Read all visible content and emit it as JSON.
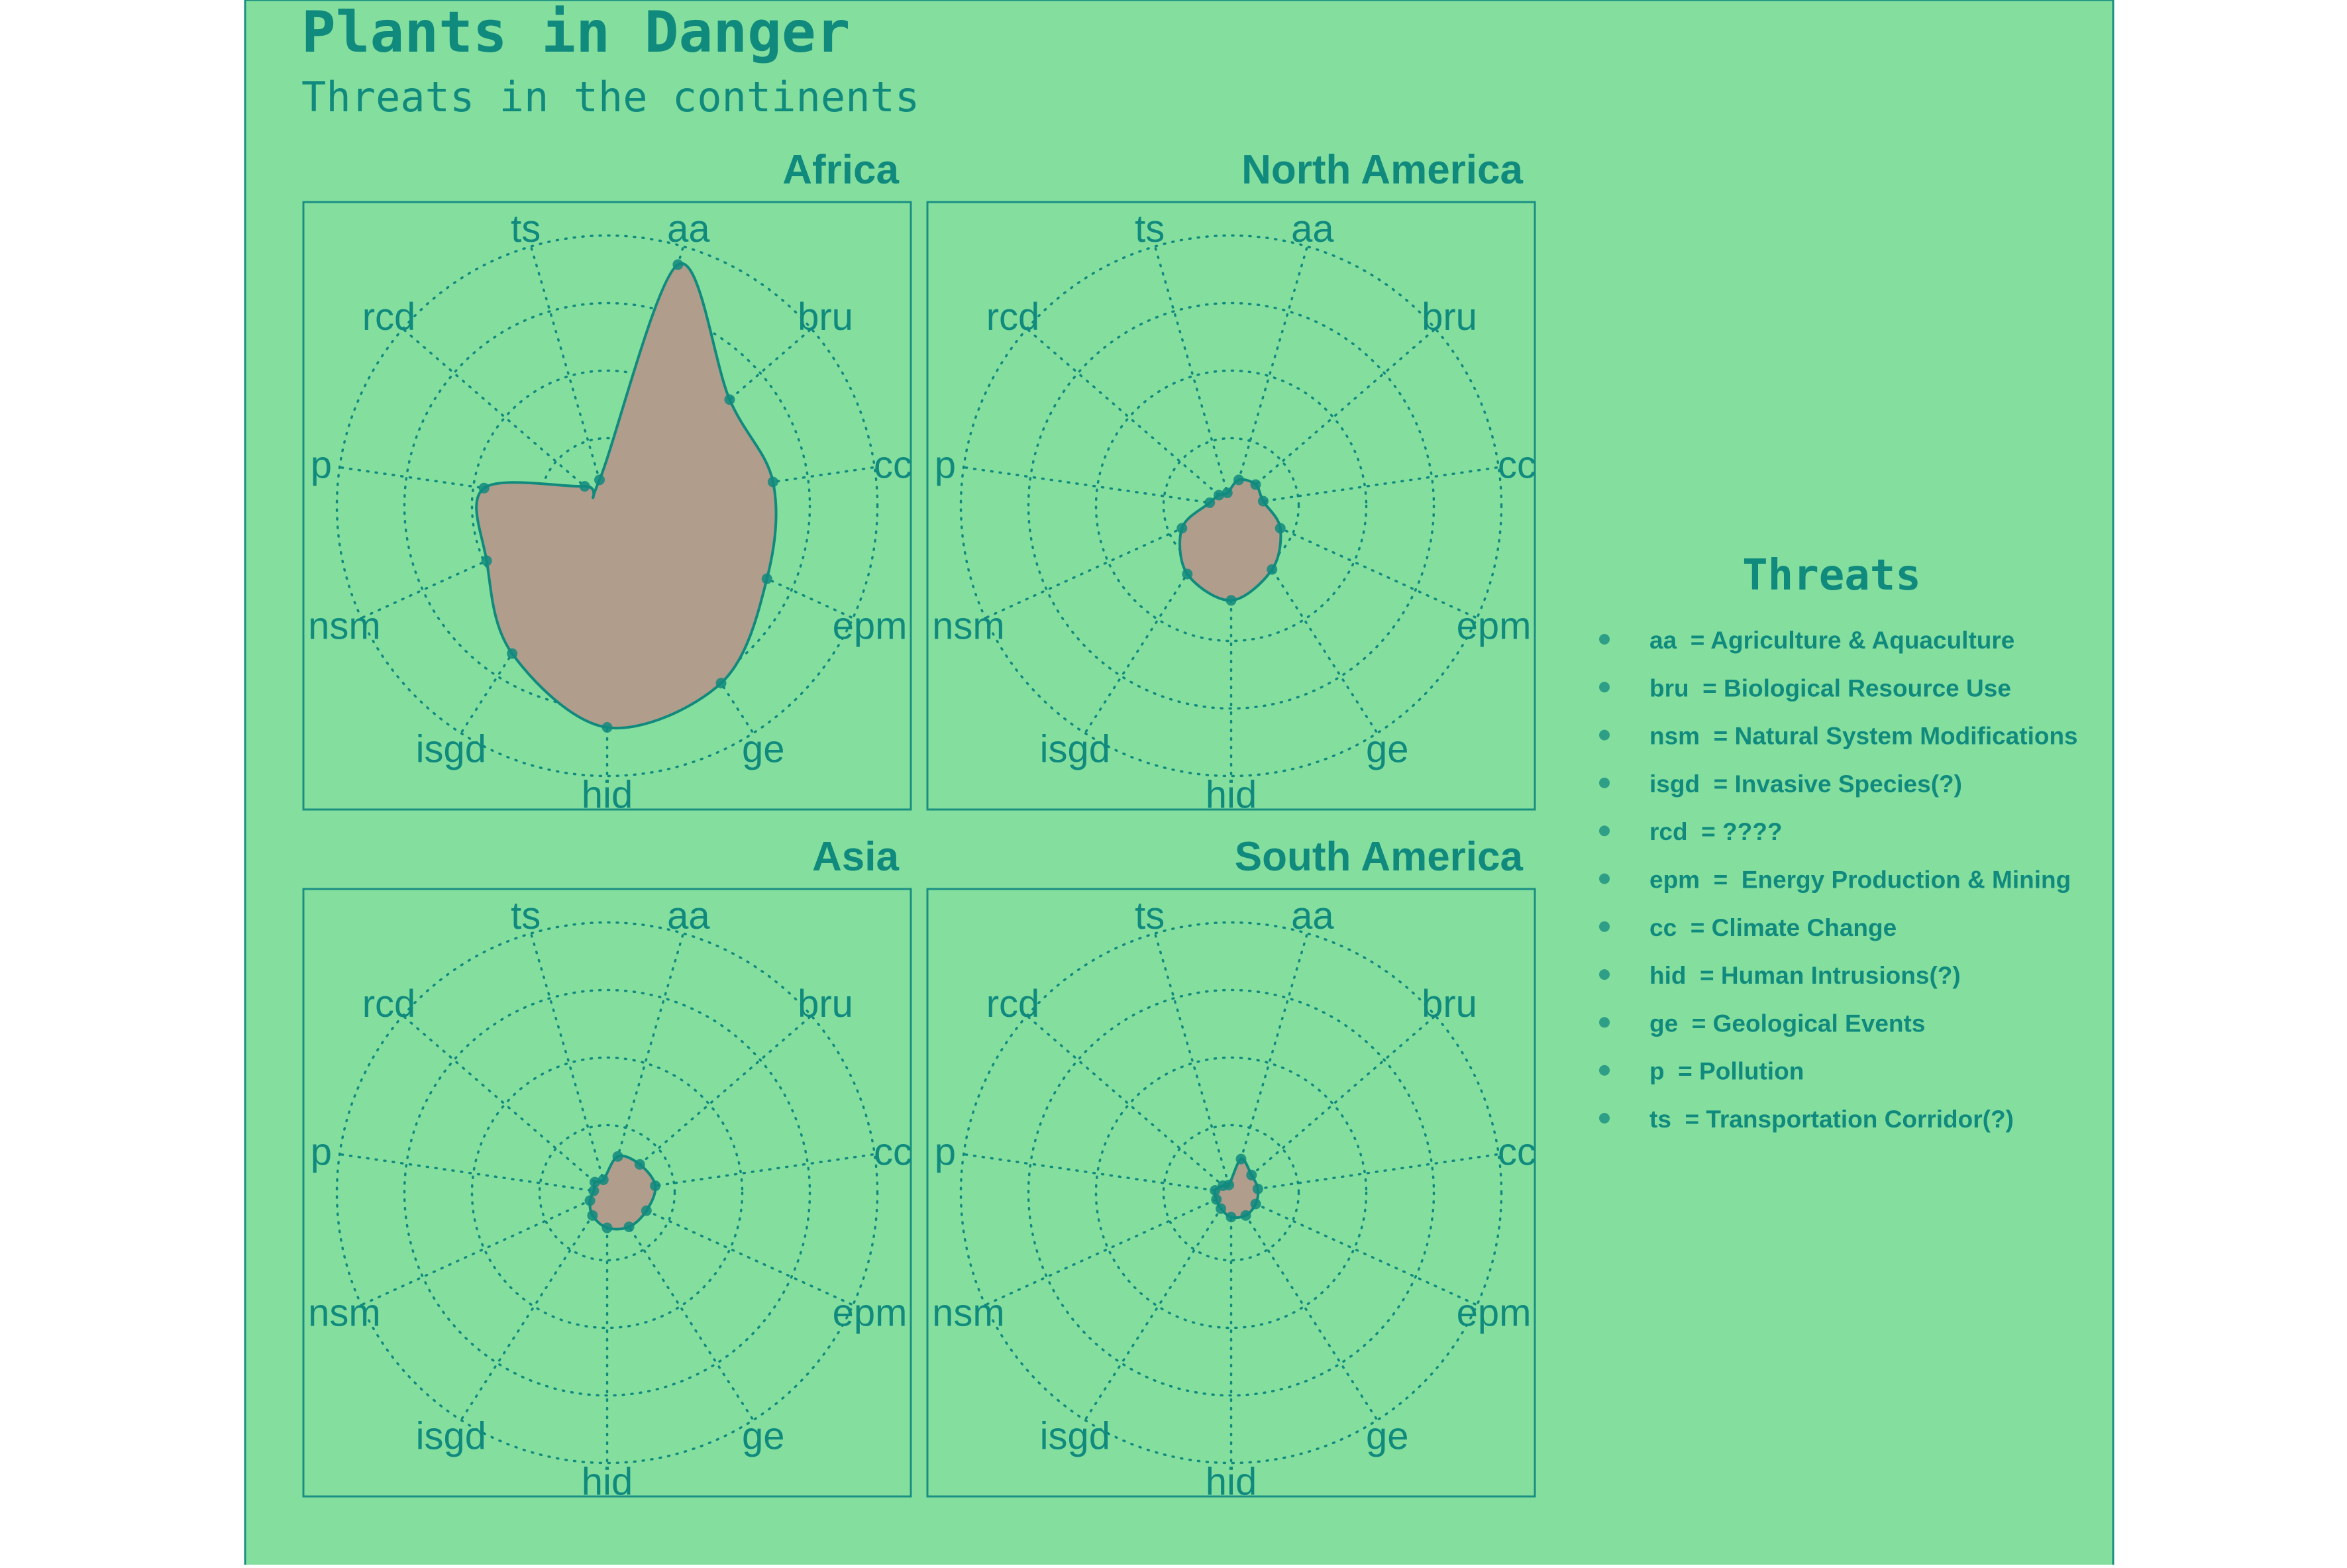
{
  "title": "Plants in Danger",
  "subtitle": "Threats in the continents",
  "colors": {
    "background": "#84DF9F",
    "accent": "#118A7E",
    "fill": "#B09D8B",
    "border": "#1A8F82"
  },
  "legend": {
    "title": "Threats",
    "items": [
      "aa  = Agriculture & Aquaculture",
      "bru  = Biological Resource Use",
      "nsm  = Natural System Modifications",
      "isgd  = Invasive Species(?)",
      "rcd  = ????",
      "epm  =  Energy Production & Mining",
      "cc  = Climate Change",
      "hid  = Human Intrusions(?)",
      "ge  = Geological Events",
      "p  = Pollution",
      "ts  = Transportation Corridor(?)"
    ]
  },
  "chart_data": {
    "type": "radar",
    "axes": [
      "aa",
      "bru",
      "cc",
      "epm",
      "ge",
      "hid",
      "isgd",
      "nsm",
      "p",
      "rcd",
      "ts"
    ],
    "rlim": [
      0,
      1
    ],
    "grid": true,
    "legend_position": "right",
    "panels": [
      {
        "name": "Africa",
        "values": [
          0.93,
          0.6,
          0.62,
          0.65,
          0.78,
          0.82,
          0.65,
          0.49,
          0.46,
          0.11,
          0.1
        ]
      },
      {
        "name": "North America",
        "values": [
          0.1,
          0.12,
          0.12,
          0.2,
          0.28,
          0.35,
          0.3,
          0.2,
          0.08,
          0.06,
          0.05
        ]
      },
      {
        "name": "Asia",
        "values": [
          0.14,
          0.16,
          0.18,
          0.16,
          0.15,
          0.13,
          0.1,
          0.07,
          0.05,
          0.06,
          0.05
        ]
      },
      {
        "name": "South America",
        "values": [
          0.13,
          0.1,
          0.1,
          0.1,
          0.1,
          0.09,
          0.07,
          0.06,
          0.06,
          0.04,
          0.03
        ]
      }
    ]
  }
}
